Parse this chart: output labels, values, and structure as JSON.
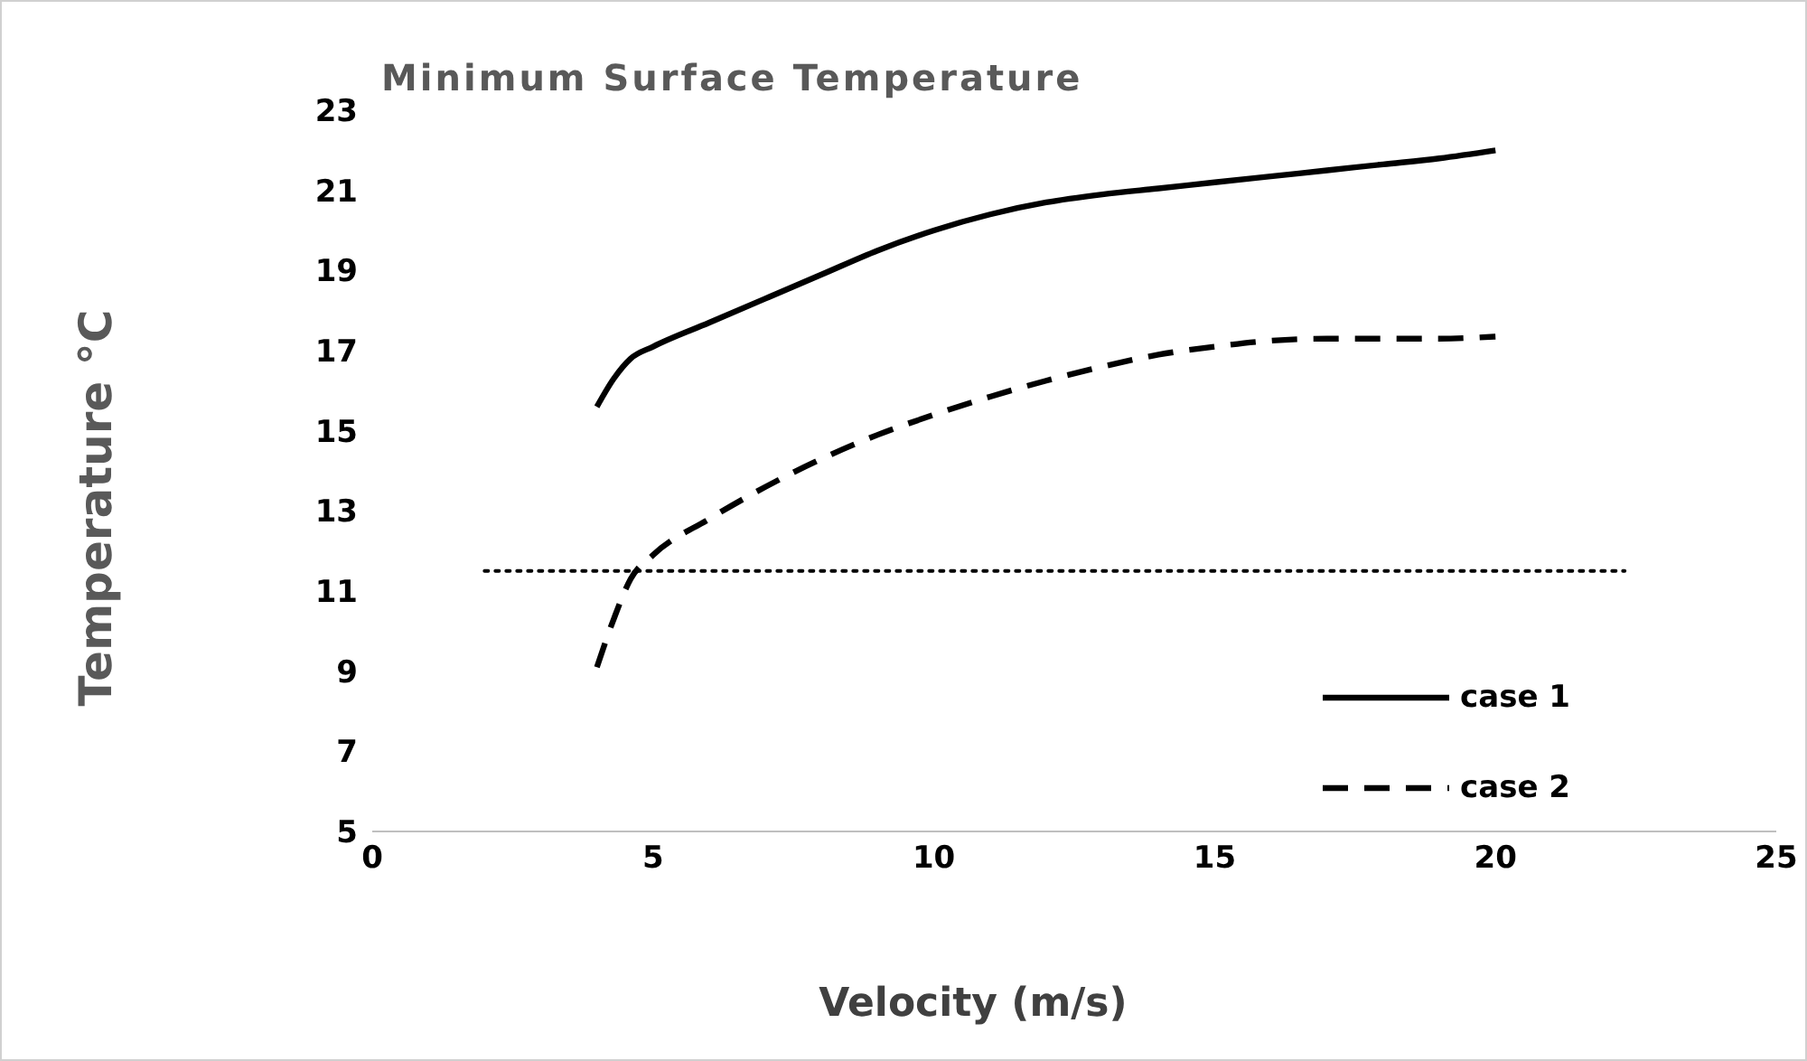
{
  "chart_data": {
    "type": "line",
    "title": "Minimum Surface Temperature",
    "xlabel": "Velocity (m/s)",
    "ylabel": "Temperature °C",
    "xlim": [
      0,
      25
    ],
    "xticks": [
      0,
      5,
      10,
      15,
      20,
      25
    ],
    "ylim": [
      5,
      23
    ],
    "yticks": [
      5,
      7,
      9,
      11,
      13,
      15,
      17,
      19,
      21,
      23
    ],
    "grid": false,
    "legend": "bottom right",
    "marker": "none",
    "series": [
      {
        "name": "case 1",
        "color": "#000000",
        "line_style": "solid",
        "x": [
          4,
          4.3,
          4.6,
          5,
          6,
          7,
          8,
          9,
          10,
          11,
          12,
          13,
          14,
          15,
          16,
          17,
          18,
          19,
          20
        ],
        "values": [
          15.6,
          16.3,
          16.8,
          17.1,
          17.7,
          18.3,
          18.9,
          19.5,
          20.0,
          20.4,
          20.7,
          20.9,
          21.05,
          21.2,
          21.35,
          21.5,
          21.65,
          21.8,
          22.0
        ]
      },
      {
        "name": "case 2",
        "color": "#000000",
        "line_style": "dashed",
        "x": [
          4,
          4.3,
          4.6,
          5,
          6,
          7,
          8,
          9,
          10,
          11,
          12,
          13,
          14,
          15,
          16,
          17,
          18,
          19,
          20
        ],
        "values": [
          9.1,
          10.3,
          11.3,
          11.9,
          12.8,
          13.6,
          14.3,
          14.9,
          15.4,
          15.85,
          16.25,
          16.6,
          16.9,
          17.1,
          17.25,
          17.3,
          17.3,
          17.3,
          17.35
        ]
      },
      {
        "color": "#000000",
        "line_style": "dotted",
        "x": [
          2,
          22.3
        ],
        "values": [
          11.5,
          11.5
        ]
      }
    ]
  }
}
